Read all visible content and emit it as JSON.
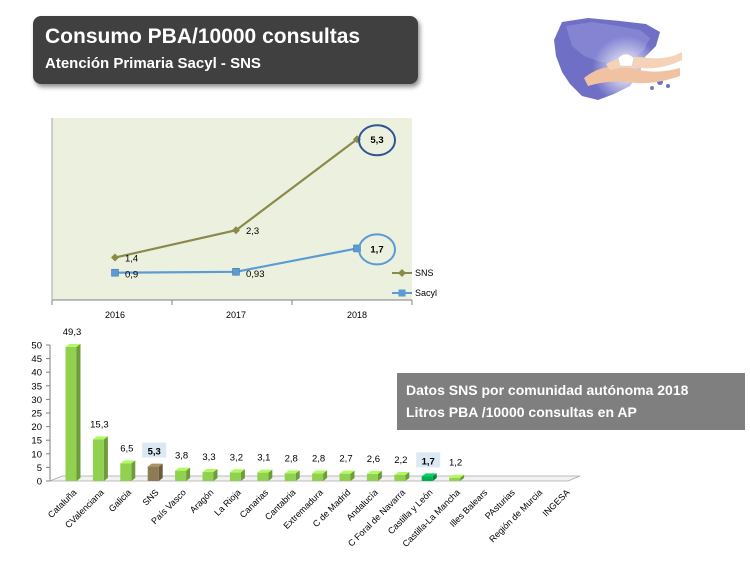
{
  "header": {
    "title": "Consumo PBA/10000 consultas",
    "subtitle": "Atención Primaria Sacyl - SNS"
  },
  "logo": {
    "icon": "spain-map-hands-icon"
  },
  "info_box": {
    "line1": "Datos SNS por comunidad autónoma 2018",
    "line2": "Litros PBA /10000 consultas en AP"
  },
  "chart_data": [
    {
      "type": "line",
      "x": [
        "2016",
        "2017",
        "2018"
      ],
      "series": [
        {
          "name": "SNS",
          "values": [
            1.4,
            2.3,
            5.3
          ],
          "labels": [
            "1,4",
            "2,3",
            "5,3"
          ],
          "color": "#8b8a4b"
        },
        {
          "name": "Sacyl",
          "values": [
            0.9,
            0.93,
            1.7
          ],
          "labels": [
            "0,9",
            "0,93",
            "1,7"
          ],
          "color": "#5b9bd5"
        }
      ],
      "ylim": [
        0,
        6
      ],
      "plot_background": "#ebf1de",
      "highlight_color": "#2f5597",
      "legend": "right"
    },
    {
      "type": "bar",
      "categories": [
        "Cataluña",
        "CValenciana",
        "Galicia",
        "SNS",
        "País Vasco",
        "Aragón",
        "La Rioja",
        "Canarias",
        "Cantabria",
        "Extremadura",
        "C de Madrid",
        "Andalucía",
        "C Foral de Navarra",
        "Castilla y León",
        "Castilla-La Mancha",
        "Illes Balears",
        "PAsturias",
        "Región de Murcia",
        "INGESA"
      ],
      "values": [
        49.3,
        15.3,
        6.5,
        5.3,
        3.8,
        3.3,
        3.2,
        3.1,
        2.8,
        2.8,
        2.7,
        2.6,
        2.2,
        1.7,
        1.2,
        null,
        null,
        null,
        null
      ],
      "labels": [
        "49,3",
        "15,3",
        "6,5",
        "5,3",
        "3,8",
        "3,3",
        "3,2",
        "3,1",
        "2,8",
        "2,8",
        "2,7",
        "2,6",
        "2,2",
        "1,7",
        "1,2",
        "",
        "",
        "",
        ""
      ],
      "y_ticks": [
        "0",
        "5",
        "10",
        "15",
        "20",
        "25",
        "30",
        "35",
        "40",
        "45",
        "50"
      ],
      "ylim": [
        0,
        50
      ],
      "colors": {
        "default": "#92d050",
        "SNS": "#8c7b53",
        "Castilla y León": "#00b050",
        "highlight_label_bg": "#dbe9f4"
      }
    }
  ]
}
